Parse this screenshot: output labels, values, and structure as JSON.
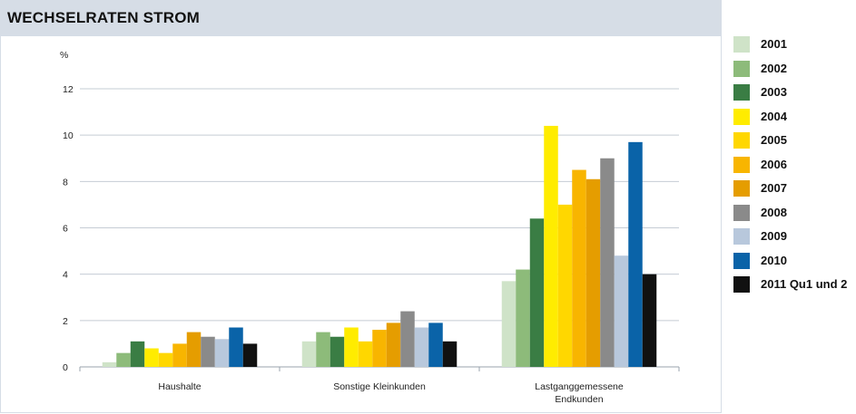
{
  "chart_data": {
    "type": "bar",
    "title": "WECHSELRATEN STROM",
    "ylabel": "%",
    "ylim": [
      0,
      12
    ],
    "yticks": [
      0,
      2,
      4,
      6,
      8,
      10,
      12
    ],
    "grid": true,
    "legend_position": "right",
    "categories": [
      [
        "Haushalte"
      ],
      [
        "Sonstige Kleinkunden"
      ],
      [
        "Lastganggemessene",
        "Endkunden"
      ]
    ],
    "series": [
      {
        "name": "2001",
        "color": "#cfe3c8",
        "values": [
          0.2,
          1.1,
          3.7
        ]
      },
      {
        "name": "2002",
        "color": "#8dbb7a",
        "values": [
          0.6,
          1.5,
          4.2
        ]
      },
      {
        "name": "2003",
        "color": "#3a7d44",
        "values": [
          1.1,
          1.3,
          6.4
        ]
      },
      {
        "name": "2004",
        "color": "#ffec00",
        "values": [
          0.8,
          1.7,
          10.4
        ]
      },
      {
        "name": "2005",
        "color": "#ffd700",
        "values": [
          0.6,
          1.1,
          7.0
        ]
      },
      {
        "name": "2006",
        "color": "#f8b500",
        "values": [
          1.0,
          1.6,
          8.5
        ]
      },
      {
        "name": "2007",
        "color": "#e59d00",
        "values": [
          1.5,
          1.9,
          8.1
        ]
      },
      {
        "name": "2008",
        "color": "#8a8a8a",
        "values": [
          1.3,
          2.4,
          9.0
        ]
      },
      {
        "name": "2009",
        "color": "#b8c8dc",
        "values": [
          1.2,
          1.7,
          4.8
        ]
      },
      {
        "name": "2010",
        "color": "#0a63a8",
        "values": [
          1.7,
          1.9,
          9.7
        ]
      },
      {
        "name": "2011 Qu1 und 2",
        "color": "#111111",
        "values": [
          1.0,
          1.1,
          4.0
        ]
      }
    ]
  }
}
